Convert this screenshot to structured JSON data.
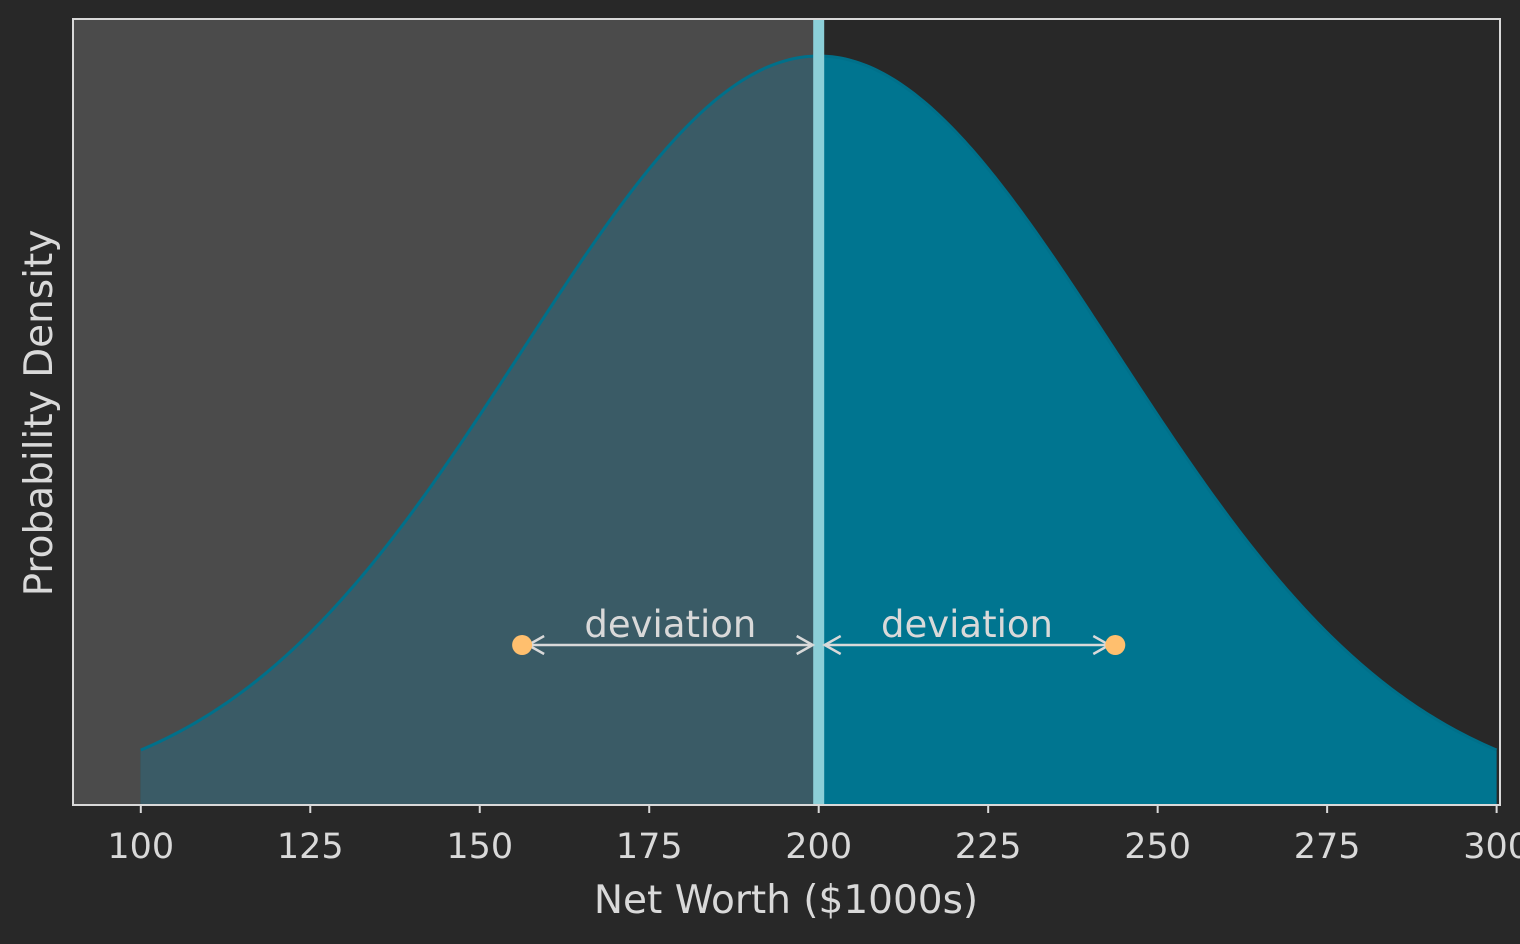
{
  "chart_data": {
    "type": "area",
    "xlabel": "Net Worth ($1000s)",
    "ylabel": "Probability Density",
    "xlim": [
      90,
      300.5
    ],
    "x_ticks": [
      100,
      125,
      150,
      175,
      200,
      225,
      250,
      275,
      300
    ],
    "x_tick_labels": [
      "100",
      "125",
      "150",
      "175",
      "200",
      "225",
      "250",
      "275",
      "300"
    ],
    "y_ticks_shown": false,
    "grid": false,
    "legend": "none",
    "distribution": {
      "kind": "normal",
      "mean": 200,
      "std": 43.75,
      "x_range": [
        100,
        300
      ]
    },
    "mean_line": {
      "x": 200
    },
    "shaded_region": {
      "x_from": 90,
      "x_to": 200
    },
    "annotations": [
      {
        "text": "deviation",
        "x_from": 156.25,
        "x_to": 200
      },
      {
        "text": "deviation",
        "x_from": 200,
        "x_to": 243.75
      }
    ],
    "markers": [
      {
        "x": 156.25
      },
      {
        "x": 243.75
      }
    ],
    "colors": {
      "background": "#282828",
      "shaded_region": "#4b4b4b",
      "curve_fill": "#007590",
      "curve_fill_left": "#3a5b66",
      "curve_line": "#00708a",
      "mean_line": "#8ccfd8",
      "markers": "#ffbf6e",
      "arrows": "#d9d9d9",
      "axes": "#d9d9d9",
      "text": "#d9d9d9"
    }
  }
}
